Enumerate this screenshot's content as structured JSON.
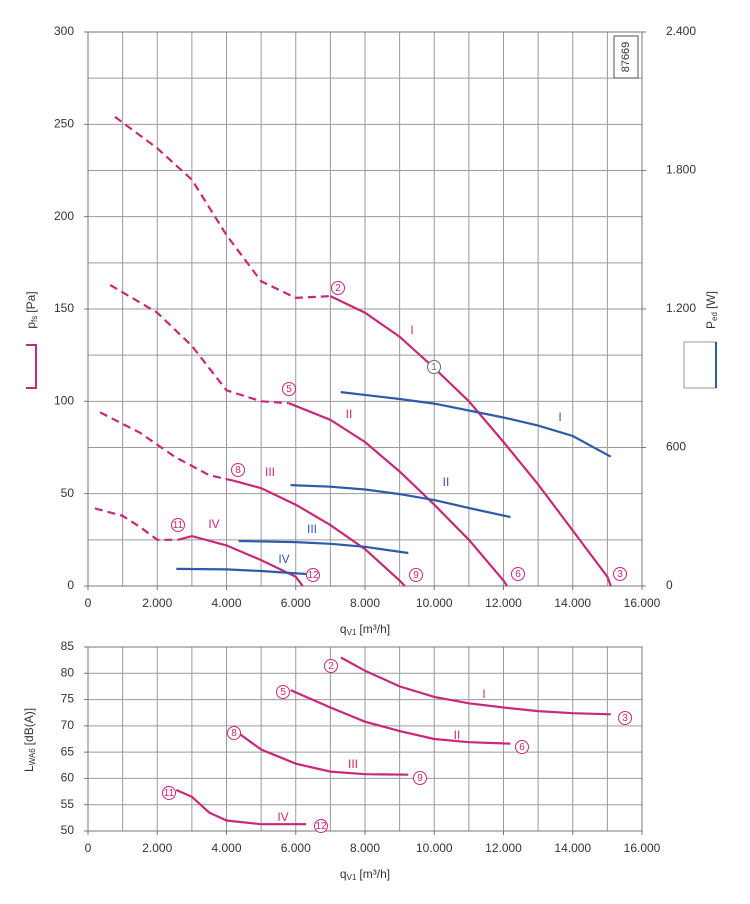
{
  "chart_data": [
    {
      "type": "line",
      "x_label": "q",
      "x_label_sub": "V1",
      "x_label_unit": "[m³/h]",
      "y_label": "p",
      "y_label_sub": "fs",
      "y_label_unit": "[Pa]",
      "y2_label": "P",
      "y2_label_sub": "ed",
      "y2_label_unit": "[W]",
      "code": "87669",
      "xlim": [
        0,
        16000
      ],
      "xticks": [
        0,
        {
          "value": 2000,
          "label": "2.000"
        },
        {
          "value": 4000,
          "label": "4.000"
        },
        {
          "value": 6000,
          "label": "6.000"
        },
        {
          "value": 8000,
          "label": "8.000"
        },
        {
          "value": 10000,
          "label": "10.000"
        },
        {
          "value": 12000,
          "label": "12.000"
        },
        {
          "value": 14000,
          "label": "14.000"
        },
        {
          "value": 16000,
          "label": "16.000"
        }
      ],
      "x_grid": [
        0,
        1000,
        2000,
        3000,
        4000,
        5000,
        6000,
        7000,
        8000,
        9000,
        10000,
        11000,
        12000,
        13000,
        14000,
        15000,
        16000
      ],
      "ylim": [
        0,
        300
      ],
      "yticks": [
        0,
        50,
        100,
        150,
        200,
        250,
        300
      ],
      "y_grid": [
        0,
        25,
        50,
        75,
        100,
        125,
        150,
        175,
        200,
        225,
        250,
        275,
        300
      ],
      "y2lim": [
        0,
        2400
      ],
      "y2ticks": [
        0,
        600,
        {
          "value": 1200,
          "label": "1.200"
        },
        {
          "value": 1800,
          "label": "1.800"
        },
        {
          "value": 2400,
          "label": "2.400"
        }
      ],
      "markers": [
        "2",
        "1",
        "5",
        "6",
        "3",
        "8",
        "9",
        "11",
        "12"
      ],
      "series": [
        {
          "color": "#c8287a",
          "style": "dashed",
          "x": [
            780,
            2000,
            3000,
            4000,
            5000,
            6000,
            7000
          ],
          "values": [
            254,
            237,
            220,
            190,
            165,
            156,
            157
          ]
        },
        {
          "name": "I",
          "color": "#c8287a",
          "style": "solid",
          "x": [
            7000,
            8000,
            9000,
            10000,
            11000,
            12000,
            13000,
            14000,
            15000,
            15100
          ],
          "values": [
            157,
            148,
            135,
            118,
            100,
            78,
            55,
            30,
            5,
            0
          ]
        },
        {
          "color": "#c8287a",
          "style": "dashed",
          "x": [
            640,
            2000,
            3000,
            4000,
            5000,
            5800
          ],
          "values": [
            163,
            148,
            130,
            106,
            100,
            99
          ]
        },
        {
          "name": "II",
          "color": "#c8287a",
          "style": "solid",
          "x": [
            5800,
            7000,
            8000,
            9000,
            10000,
            11000,
            12000,
            12100
          ],
          "values": [
            99,
            90,
            78,
            62,
            44,
            25,
            3,
            0
          ]
        },
        {
          "color": "#c8287a",
          "style": "dashed",
          "x": [
            350,
            1500,
            2500,
            3500,
            4200
          ],
          "values": [
            94,
            83,
            70,
            60,
            57
          ]
        },
        {
          "name": "III",
          "color": "#c8287a",
          "style": "solid",
          "x": [
            4200,
            5000,
            6000,
            7000,
            8000,
            9000,
            9150
          ],
          "values": [
            57,
            53,
            44,
            33,
            20,
            3,
            0
          ]
        },
        {
          "color": "#c8287a",
          "style": "dashed",
          "x": [
            200,
            1000,
            1500,
            2000,
            2600
          ],
          "values": [
            42,
            38,
            32,
            25,
            25
          ]
        },
        {
          "name": "IV",
          "color": "#c8287a",
          "style": "solid",
          "x": [
            2600,
            3000,
            4000,
            5000,
            6000,
            6200
          ],
          "values": [
            25,
            27,
            22,
            14,
            5,
            0
          ]
        },
        {
          "name": "I",
          "color": "#2e5aa8",
          "style": "solid",
          "axis": "y2",
          "x": [
            7300,
            9000,
            10000,
            12000,
            13000,
            14000,
            15100
          ],
          "values": [
            840,
            810,
            790,
            730,
            695,
            650,
            560
          ]
        },
        {
          "name": "II",
          "color": "#2e5aa8",
          "style": "solid",
          "axis": "y2",
          "x": [
            5850,
            7000,
            8000,
            9000,
            10000,
            11000,
            12200
          ],
          "values": [
            437,
            430,
            418,
            398,
            372,
            338,
            299
          ]
        },
        {
          "name": "III",
          "color": "#2e5aa8",
          "style": "solid",
          "axis": "y2",
          "x": [
            4350,
            6000,
            7000,
            8000,
            9250
          ],
          "values": [
            195,
            190,
            183,
            170,
            143
          ]
        },
        {
          "name": "IV",
          "color": "#2e5aa8",
          "style": "solid",
          "axis": "y2",
          "x": [
            2550,
            4000,
            5000,
            6300
          ],
          "values": [
            74,
            72,
            65,
            52
          ]
        }
      ]
    },
    {
      "type": "line",
      "x_label": "q",
      "x_label_sub": "V1",
      "x_label_unit": "[m³/h]",
      "y_label": "L",
      "y_label_sub": "WA6",
      "y_label_unit": "[dB(A)]",
      "xlim": [
        0,
        16000
      ],
      "xticks": [
        0,
        {
          "value": 2000,
          "label": "2.000"
        },
        {
          "value": 4000,
          "label": "4.000"
        },
        {
          "value": 6000,
          "label": "6.000"
        },
        {
          "value": 8000,
          "label": "8.000"
        },
        {
          "value": 10000,
          "label": "10.000"
        },
        {
          "value": 12000,
          "label": "12.000"
        },
        {
          "value": 14000,
          "label": "14.000"
        },
        {
          "value": 16000,
          "label": "16.000"
        }
      ],
      "x_grid": [
        0,
        1000,
        2000,
        3000,
        4000,
        5000,
        6000,
        7000,
        8000,
        9000,
        10000,
        11000,
        12000,
        13000,
        14000,
        15000,
        16000
      ],
      "ylim": [
        50,
        85
      ],
      "yticks": [
        50,
        55,
        60,
        65,
        70,
        75,
        80,
        85
      ],
      "y_grid": [
        50,
        55,
        60,
        65,
        70,
        75,
        80,
        85
      ],
      "markers": [
        "2",
        "3",
        "5",
        "6",
        "8",
        "9",
        "11",
        "12"
      ],
      "series": [
        {
          "name": "I",
          "color": "#c8287a",
          "style": "solid",
          "x": [
            7300,
            8000,
            9000,
            10000,
            11000,
            12000,
            13000,
            14000,
            15100
          ],
          "values": [
            83,
            80.5,
            77.5,
            75.5,
            74.3,
            73.5,
            72.8,
            72.4,
            72.2
          ]
        },
        {
          "name": "II",
          "color": "#c8287a",
          "style": "solid",
          "x": [
            5850,
            7000,
            8000,
            9000,
            10000,
            11000,
            12200
          ],
          "values": [
            76.8,
            73.5,
            70.8,
            69,
            67.5,
            66.9,
            66.6
          ]
        },
        {
          "name": "III",
          "color": "#c8287a",
          "style": "solid",
          "x": [
            4350,
            5000,
            6000,
            7000,
            8000,
            9250
          ],
          "values": [
            68.6,
            65.5,
            62.8,
            61.3,
            60.8,
            60.7
          ]
        },
        {
          "name": "IV",
          "color": "#c8287a",
          "style": "solid",
          "x": [
            2550,
            3000,
            3500,
            4000,
            5000,
            6300
          ],
          "values": [
            57.8,
            56.5,
            53.5,
            52,
            51.3,
            51.3
          ]
        }
      ]
    }
  ]
}
